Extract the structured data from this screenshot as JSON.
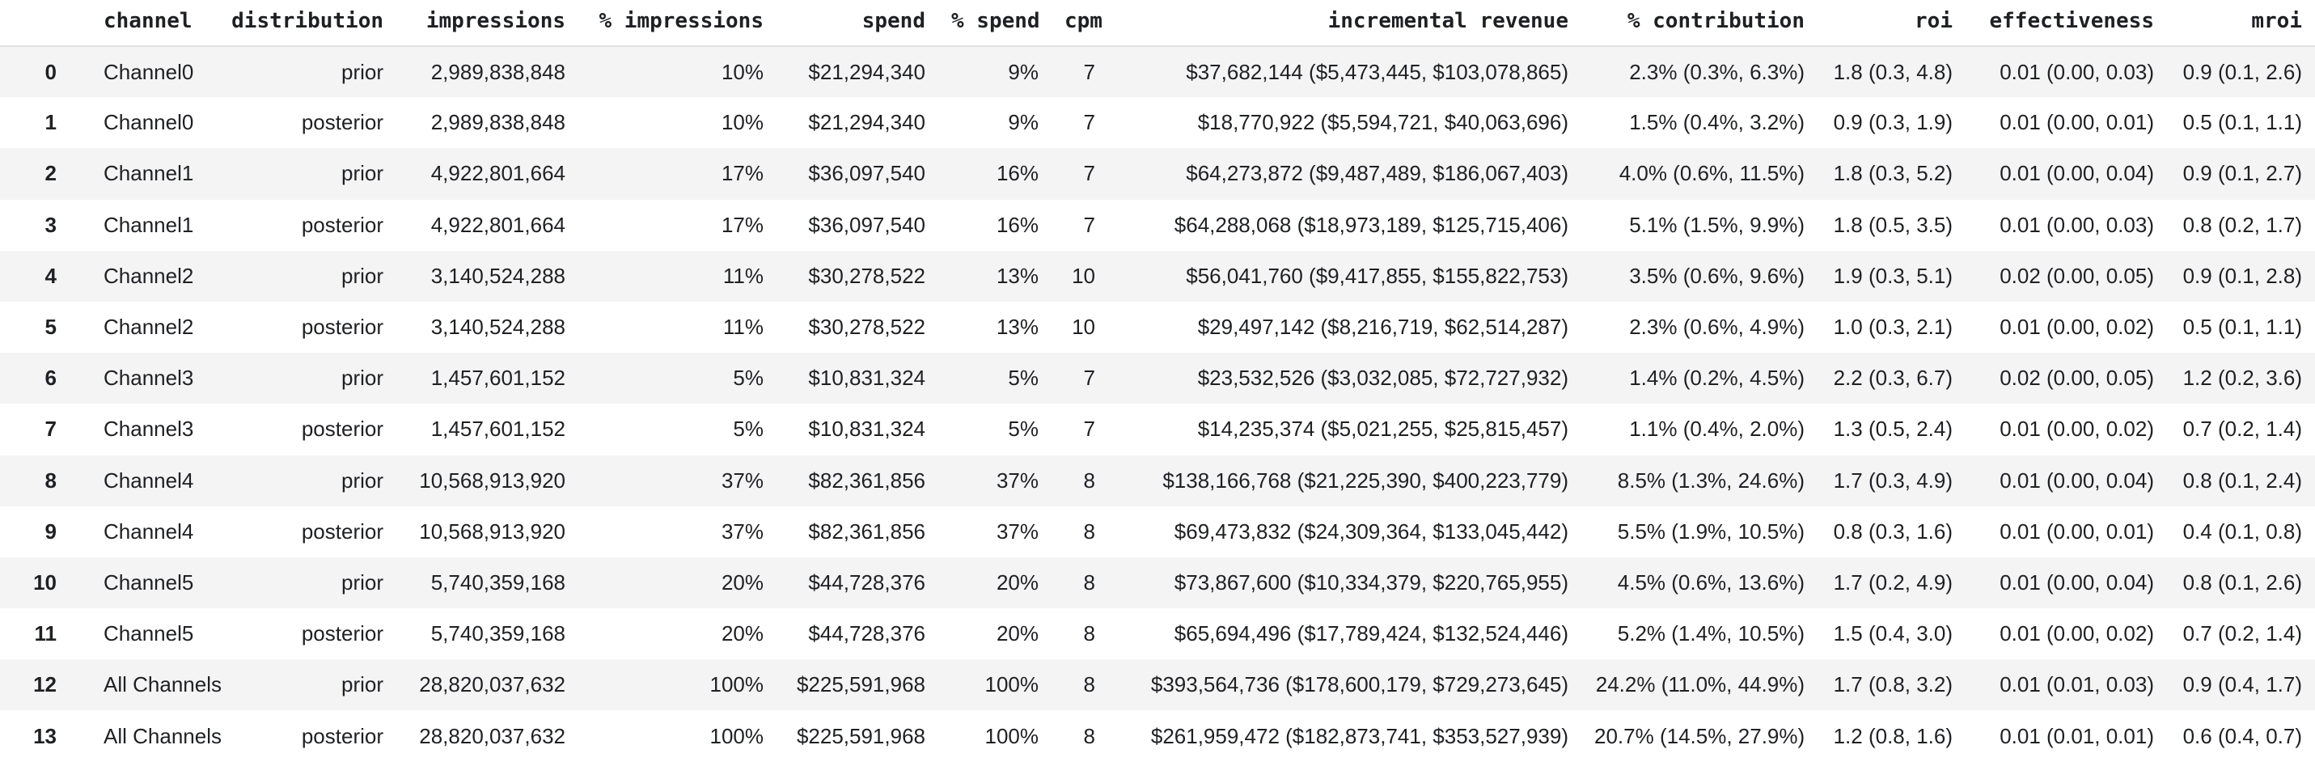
{
  "colors": {
    "text": "#1f2023",
    "stripe": "#f4f4f5",
    "header_border": "#e1e1e1",
    "row_background": "#ffffff"
  },
  "table": {
    "index_header": "",
    "columns": [
      "channel",
      "distribution",
      "impressions",
      "% impressions",
      "spend",
      "% spend",
      "cpm",
      "incremental revenue",
      "% contribution",
      "roi",
      "effectiveness",
      "mroi"
    ],
    "rows": [
      {
        "index": "0",
        "cells": [
          "Channel0",
          "prior",
          "2,989,838,848",
          "10%",
          "$21,294,340",
          "9%",
          "7",
          "$37,682,144 ($5,473,445, $103,078,865)",
          "2.3% (0.3%, 6.3%)",
          "1.8 (0.3, 4.8)",
          "0.01 (0.00, 0.03)",
          "0.9 (0.1, 2.6)"
        ]
      },
      {
        "index": "1",
        "cells": [
          "Channel0",
          "posterior",
          "2,989,838,848",
          "10%",
          "$21,294,340",
          "9%",
          "7",
          "$18,770,922 ($5,594,721, $40,063,696)",
          "1.5% (0.4%, 3.2%)",
          "0.9 (0.3, 1.9)",
          "0.01 (0.00, 0.01)",
          "0.5 (0.1, 1.1)"
        ]
      },
      {
        "index": "2",
        "cells": [
          "Channel1",
          "prior",
          "4,922,801,664",
          "17%",
          "$36,097,540",
          "16%",
          "7",
          "$64,273,872 ($9,487,489, $186,067,403)",
          "4.0% (0.6%, 11.5%)",
          "1.8 (0.3, 5.2)",
          "0.01 (0.00, 0.04)",
          "0.9 (0.1, 2.7)"
        ]
      },
      {
        "index": "3",
        "cells": [
          "Channel1",
          "posterior",
          "4,922,801,664",
          "17%",
          "$36,097,540",
          "16%",
          "7",
          "$64,288,068 ($18,973,189, $125,715,406)",
          "5.1% (1.5%, 9.9%)",
          "1.8 (0.5, 3.5)",
          "0.01 (0.00, 0.03)",
          "0.8 (0.2, 1.7)"
        ]
      },
      {
        "index": "4",
        "cells": [
          "Channel2",
          "prior",
          "3,140,524,288",
          "11%",
          "$30,278,522",
          "13%",
          "10",
          "$56,041,760 ($9,417,855, $155,822,753)",
          "3.5% (0.6%, 9.6%)",
          "1.9 (0.3, 5.1)",
          "0.02 (0.00, 0.05)",
          "0.9 (0.1, 2.8)"
        ]
      },
      {
        "index": "5",
        "cells": [
          "Channel2",
          "posterior",
          "3,140,524,288",
          "11%",
          "$30,278,522",
          "13%",
          "10",
          "$29,497,142 ($8,216,719, $62,514,287)",
          "2.3% (0.6%, 4.9%)",
          "1.0 (0.3, 2.1)",
          "0.01 (0.00, 0.02)",
          "0.5 (0.1, 1.1)"
        ]
      },
      {
        "index": "6",
        "cells": [
          "Channel3",
          "prior",
          "1,457,601,152",
          "5%",
          "$10,831,324",
          "5%",
          "7",
          "$23,532,526 ($3,032,085, $72,727,932)",
          "1.4% (0.2%, 4.5%)",
          "2.2 (0.3, 6.7)",
          "0.02 (0.00, 0.05)",
          "1.2 (0.2, 3.6)"
        ]
      },
      {
        "index": "7",
        "cells": [
          "Channel3",
          "posterior",
          "1,457,601,152",
          "5%",
          "$10,831,324",
          "5%",
          "7",
          "$14,235,374 ($5,021,255, $25,815,457)",
          "1.1% (0.4%, 2.0%)",
          "1.3 (0.5, 2.4)",
          "0.01 (0.00, 0.02)",
          "0.7 (0.2, 1.4)"
        ]
      },
      {
        "index": "8",
        "cells": [
          "Channel4",
          "prior",
          "10,568,913,920",
          "37%",
          "$82,361,856",
          "37%",
          "8",
          "$138,166,768 ($21,225,390, $400,223,779)",
          "8.5% (1.3%, 24.6%)",
          "1.7 (0.3, 4.9)",
          "0.01 (0.00, 0.04)",
          "0.8 (0.1, 2.4)"
        ]
      },
      {
        "index": "9",
        "cells": [
          "Channel4",
          "posterior",
          "10,568,913,920",
          "37%",
          "$82,361,856",
          "37%",
          "8",
          "$69,473,832 ($24,309,364, $133,045,442)",
          "5.5% (1.9%, 10.5%)",
          "0.8 (0.3, 1.6)",
          "0.01 (0.00, 0.01)",
          "0.4 (0.1, 0.8)"
        ]
      },
      {
        "index": "10",
        "cells": [
          "Channel5",
          "prior",
          "5,740,359,168",
          "20%",
          "$44,728,376",
          "20%",
          "8",
          "$73,867,600 ($10,334,379, $220,765,955)",
          "4.5% (0.6%, 13.6%)",
          "1.7 (0.2, 4.9)",
          "0.01 (0.00, 0.04)",
          "0.8 (0.1, 2.6)"
        ]
      },
      {
        "index": "11",
        "cells": [
          "Channel5",
          "posterior",
          "5,740,359,168",
          "20%",
          "$44,728,376",
          "20%",
          "8",
          "$65,694,496 ($17,789,424, $132,524,446)",
          "5.2% (1.4%, 10.5%)",
          "1.5 (0.4, 3.0)",
          "0.01 (0.00, 0.02)",
          "0.7 (0.2, 1.4)"
        ]
      },
      {
        "index": "12",
        "cells": [
          "All Channels",
          "prior",
          "28,820,037,632",
          "100%",
          "$225,591,968",
          "100%",
          "8",
          "$393,564,736 ($178,600,179, $729,273,645)",
          "24.2% (11.0%, 44.9%)",
          "1.7 (0.8, 3.2)",
          "0.01 (0.01, 0.03)",
          "0.9 (0.4, 1.7)"
        ]
      },
      {
        "index": "13",
        "cells": [
          "All Channels",
          "posterior",
          "28,820,037,632",
          "100%",
          "$225,591,968",
          "100%",
          "8",
          "$261,959,472 ($182,873,741, $353,527,939)",
          "20.7% (14.5%, 27.9%)",
          "1.2 (0.8, 1.6)",
          "0.01 (0.01, 0.01)",
          "0.6 (0.4, 0.7)"
        ]
      }
    ]
  }
}
